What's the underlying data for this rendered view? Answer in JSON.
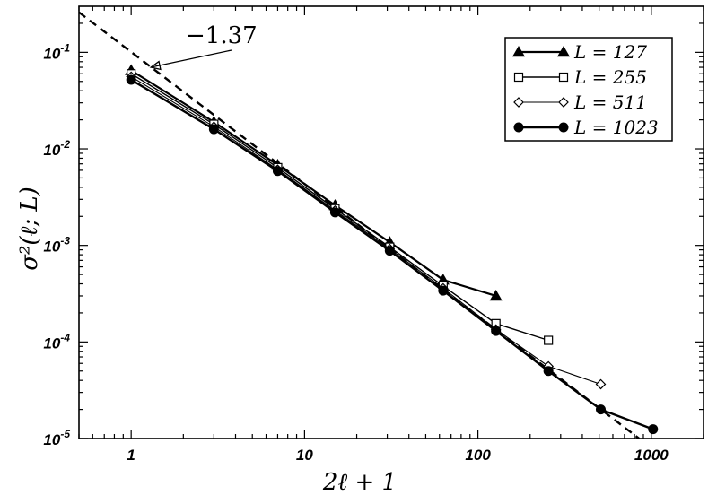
{
  "chart_data": {
    "type": "line",
    "title": "",
    "xlabel": "2ℓ + 1",
    "ylabel": "σ²(ℓ; L)",
    "xscale": "log",
    "yscale": "log",
    "xlim": [
      0.5,
      2000
    ],
    "ylim": [
      1e-05,
      0.3
    ],
    "grid": false,
    "legend_position": "top-right",
    "x_ticks": [
      {
        "value": 1,
        "label": "1"
      },
      {
        "value": 10,
        "label": "10"
      },
      {
        "value": 100,
        "label": "100"
      },
      {
        "value": 1000,
        "label": "1000"
      }
    ],
    "y_ticks": [
      {
        "value": 0.1,
        "base": "10",
        "exp": "-1"
      },
      {
        "value": 0.01,
        "base": "10",
        "exp": "-2"
      },
      {
        "value": 0.001,
        "base": "10",
        "exp": "-3"
      },
      {
        "value": 0.0001,
        "base": "10",
        "exp": "-4"
      },
      {
        "value": 1e-05,
        "base": "10",
        "exp": "-5"
      }
    ],
    "series": [
      {
        "name": "L = 127",
        "marker": "triangle",
        "x": [
          1,
          3,
          7,
          15,
          31,
          63,
          127
        ],
        "y": [
          0.065,
          0.019,
          0.0068,
          0.0026,
          0.00108,
          0.00044,
          0.0003
        ]
      },
      {
        "name": "L = 255",
        "marker": "square",
        "x": [
          1,
          3,
          7,
          15,
          31,
          63,
          127,
          255
        ],
        "y": [
          0.06,
          0.018,
          0.0064,
          0.0024,
          0.00096,
          0.00038,
          0.000155,
          0.000104
        ]
      },
      {
        "name": "L = 511",
        "marker": "diamond",
        "x": [
          1,
          3,
          7,
          15,
          31,
          63,
          127,
          255,
          511
        ],
        "y": [
          0.056,
          0.017,
          0.0061,
          0.0023,
          0.00092,
          0.00036,
          0.000135,
          5.6e-05,
          3.65e-05
        ]
      },
      {
        "name": "L = 1023",
        "marker": "circle",
        "x": [
          1,
          3,
          7,
          15,
          31,
          63,
          127,
          255,
          511,
          1023
        ],
        "y": [
          0.052,
          0.016,
          0.0059,
          0.0022,
          0.00088,
          0.00034,
          0.00013,
          5e-05,
          2e-05,
          1.25e-05
        ]
      }
    ],
    "reference_line": {
      "slope": -1.37,
      "x": [
        0.5,
        850
      ],
      "y": [
        0.26,
        1e-05
      ],
      "dash": true
    },
    "annotations": [
      {
        "text": "−1.37",
        "arrow_to": {
          "x": 1.3,
          "y": 0.07
        }
      }
    ]
  }
}
